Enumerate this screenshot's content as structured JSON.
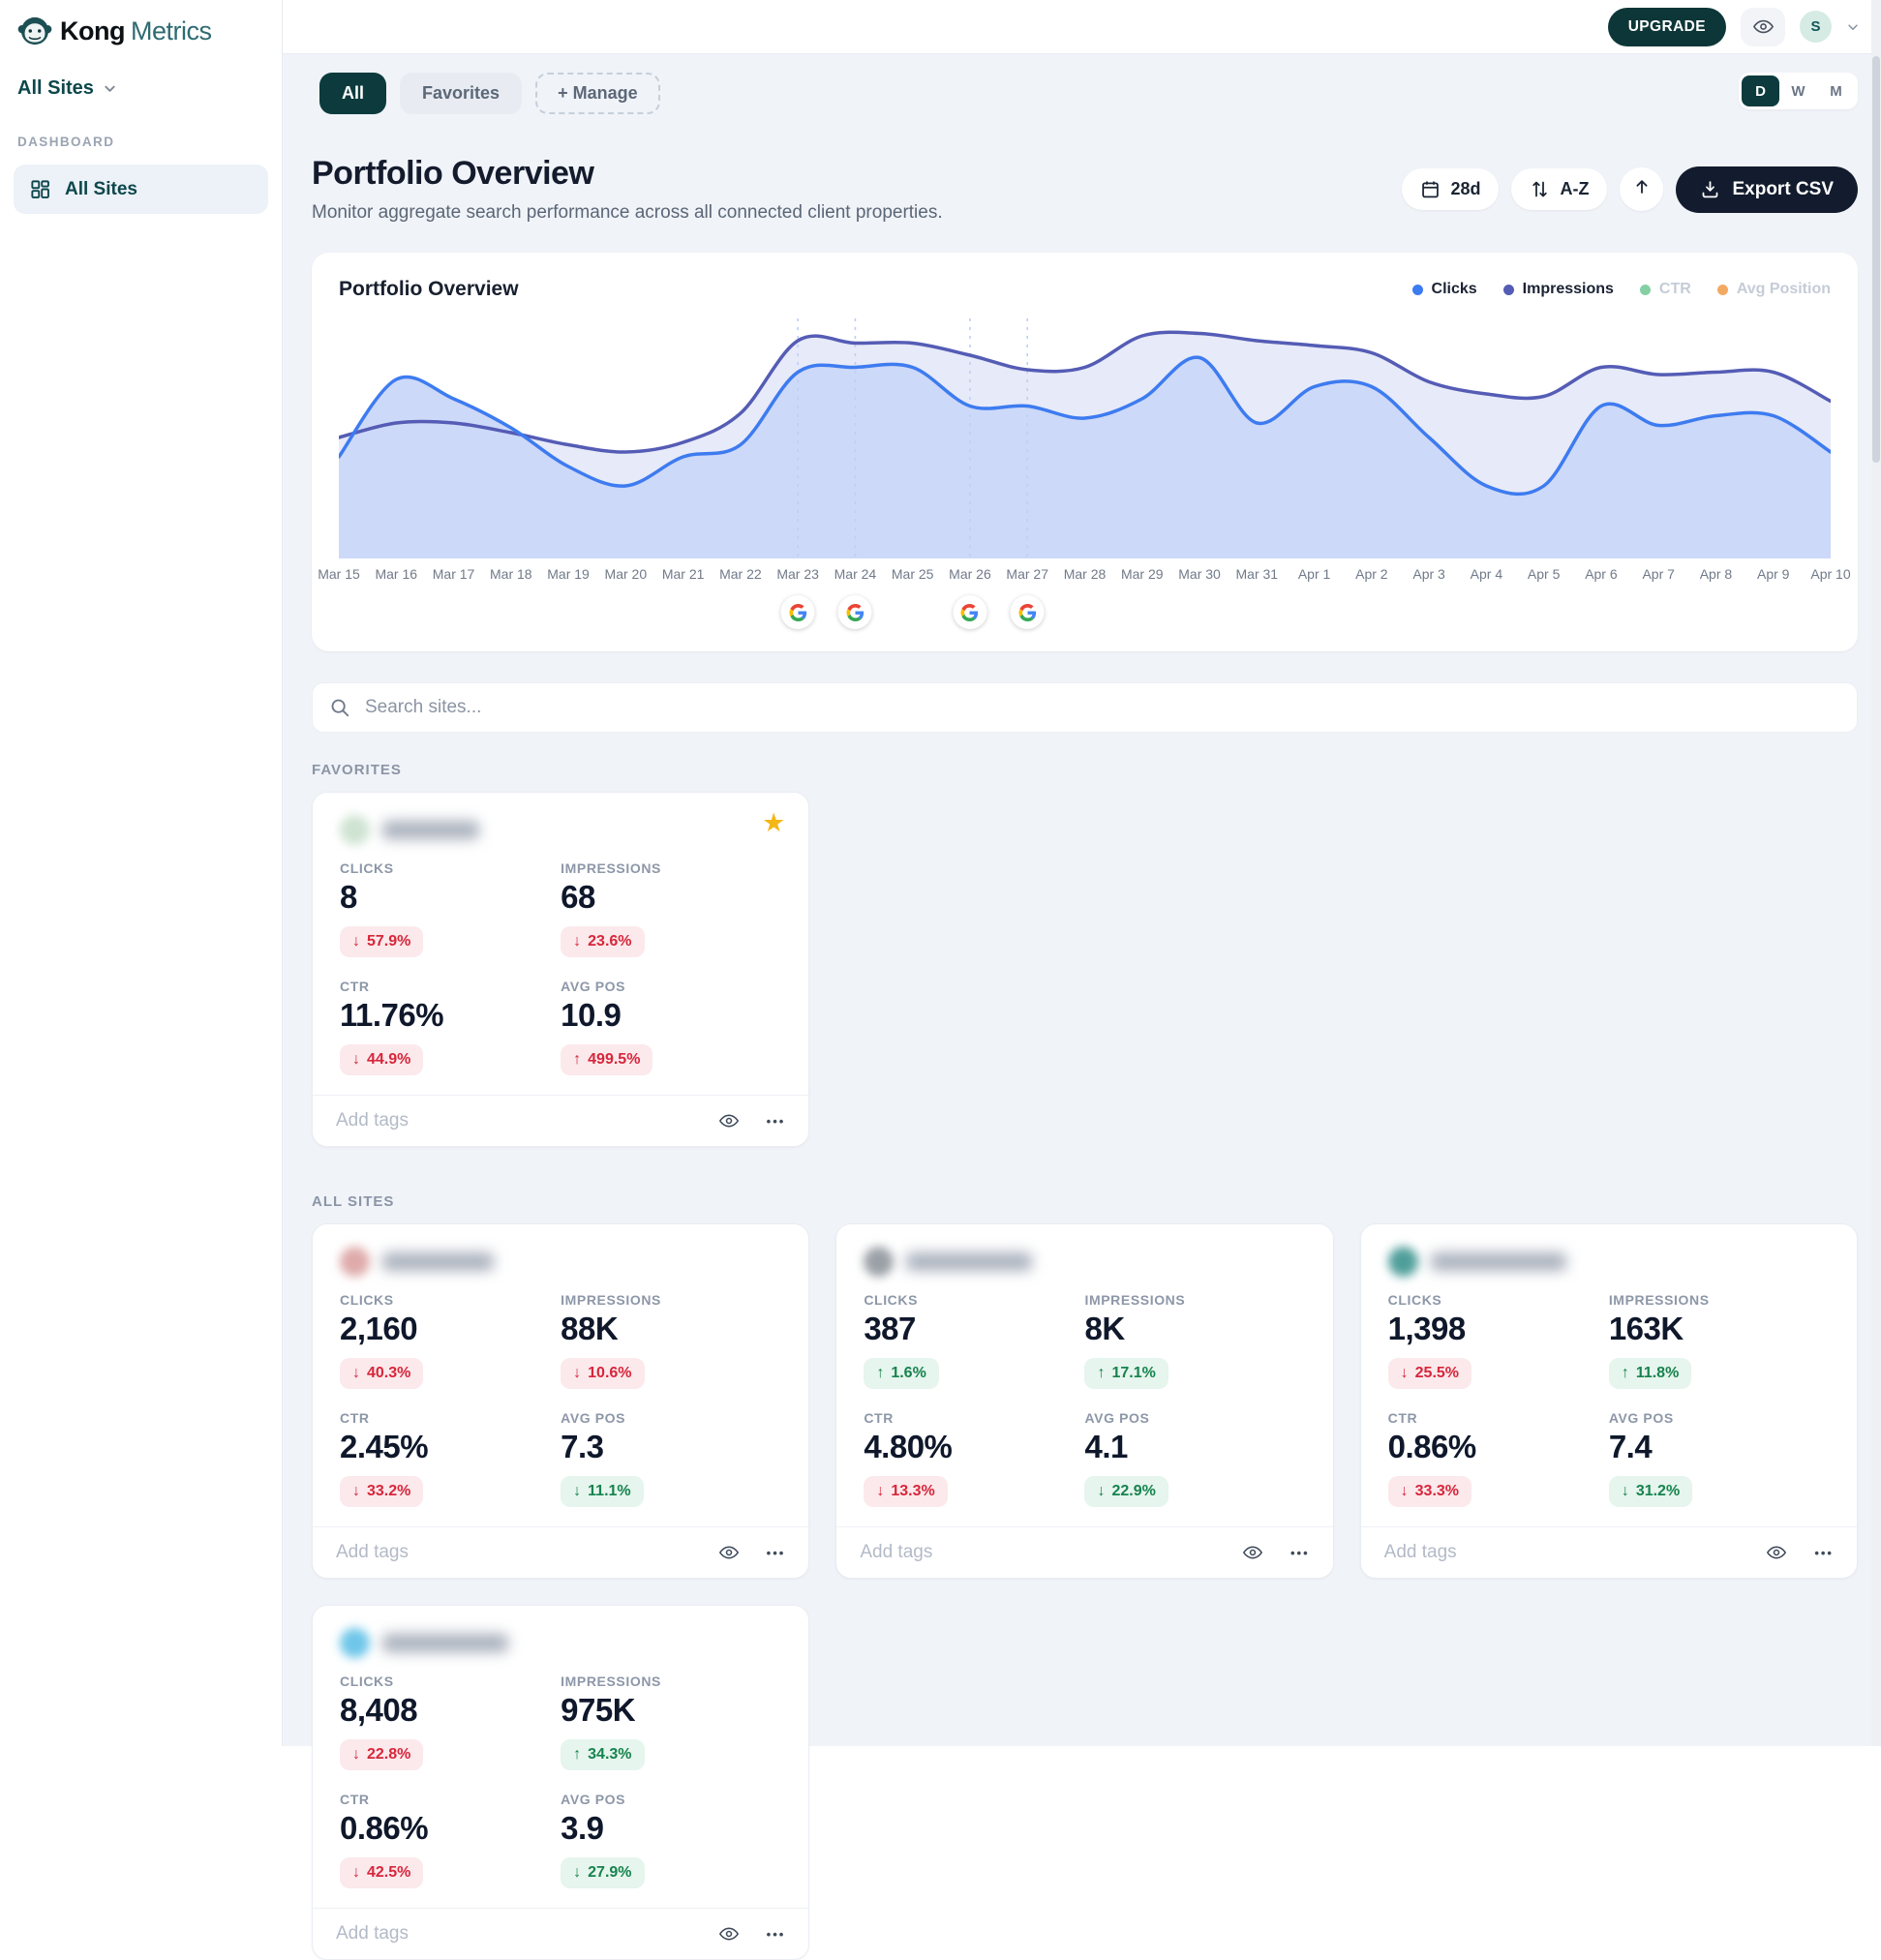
{
  "brand": {
    "kong": "Kong",
    "metrics": "Metrics"
  },
  "sidebar": {
    "site_selector_label": "All Sites",
    "section_label": "DASHBOARD",
    "items": [
      {
        "label": "All Sites",
        "active": true
      }
    ]
  },
  "topbar": {
    "upgrade_label": "UPGRADE",
    "avatar_initial": "S"
  },
  "tabs": [
    {
      "label": "All",
      "active": true
    },
    {
      "label": "Favorites",
      "active": false
    },
    {
      "label": "+ Manage",
      "active": false
    }
  ],
  "granularity": [
    {
      "label": "D",
      "active": true
    },
    {
      "label": "W",
      "active": false
    },
    {
      "label": "M",
      "active": false
    }
  ],
  "header": {
    "title": "Portfolio Overview",
    "subtitle": "Monitor aggregate search performance across all connected client properties."
  },
  "toolbar": {
    "date_range_label": "28d",
    "sort_label": "A-Z",
    "export_label": "Export CSV"
  },
  "chart_card": {
    "title": "Portfolio Overview"
  },
  "chart_data": {
    "type": "area",
    "title": "Portfolio Overview",
    "x": [
      "Mar 15",
      "Mar 16",
      "Mar 17",
      "Mar 18",
      "Mar 19",
      "Mar 20",
      "Mar 21",
      "Mar 22",
      "Mar 23",
      "Mar 24",
      "Mar 25",
      "Mar 26",
      "Mar 27",
      "Mar 28",
      "Mar 29",
      "Mar 30",
      "Mar 31",
      "Apr 1",
      "Apr 2",
      "Apr 3",
      "Apr 4",
      "Apr 5",
      "Apr 6",
      "Apr 7",
      "Apr 8",
      "Apr 9",
      "Apr 10"
    ],
    "xlabel": "",
    "ylabel": "",
    "y_axis_hidden": true,
    "grid": false,
    "legend_position": "top-right",
    "value_scale": "relative-percent-of-plot-height",
    "series": [
      {
        "name": "Clicks",
        "color": "#3d7bf0",
        "fill": "#cdd9f8",
        "enabled": true,
        "values": [
          42,
          74,
          66,
          54,
          38,
          30,
          42,
          47,
          77,
          79,
          79,
          63,
          63,
          58,
          66,
          83,
          56,
          71,
          71,
          50,
          30,
          30,
          63,
          55,
          59,
          59,
          44
        ]
      },
      {
        "name": "Impressions",
        "color": "#545cb5",
        "fill": "#e7eaf8",
        "enabled": true,
        "values": [
          50,
          56,
          56,
          52,
          47,
          44,
          48,
          60,
          90,
          89,
          89,
          84,
          78,
          79,
          92,
          93,
          90,
          88,
          85,
          73,
          68,
          67,
          79,
          76,
          77,
          77,
          65
        ]
      }
    ],
    "disabled_series": [
      {
        "name": "CTR",
        "color": "#85cfa4"
      },
      {
        "name": "Avg Position",
        "color": "#f4a963"
      }
    ],
    "google_updates": [
      {
        "date": "Mar 23",
        "index": 8
      },
      {
        "date": "Mar 24",
        "index": 9
      },
      {
        "date": "Mar 26",
        "index": 11
      },
      {
        "date": "Mar 27",
        "index": 12
      }
    ]
  },
  "search": {
    "placeholder": "Search sites..."
  },
  "sections": {
    "favorites": "FAVORITES",
    "all_sites": "ALL SITES"
  },
  "card_labels": {
    "add_tags": "Add tags"
  },
  "site_cards": {
    "favorites": [
      {
        "favicon_color": "#cfe3d2",
        "name_blur_width": 100,
        "starred": true,
        "metrics": [
          {
            "label": "CLICKS",
            "value": "8",
            "change": "57.9%",
            "direction": "down",
            "sentiment": "negative"
          },
          {
            "label": "IMPRESSIONS",
            "value": "68",
            "change": "23.6%",
            "direction": "down",
            "sentiment": "negative"
          },
          {
            "label": "CTR",
            "value": "11.76%",
            "change": "44.9%",
            "direction": "down",
            "sentiment": "negative"
          },
          {
            "label": "AVG POS",
            "value": "10.9",
            "change": "499.5%",
            "direction": "up",
            "sentiment": "negative"
          }
        ]
      }
    ],
    "all_sites": [
      {
        "favicon_color": "#dfaaaa",
        "name_blur_width": 115,
        "starred": false,
        "metrics": [
          {
            "label": "CLICKS",
            "value": "2,160",
            "change": "40.3%",
            "direction": "down",
            "sentiment": "negative"
          },
          {
            "label": "IMPRESSIONS",
            "value": "88K",
            "change": "10.6%",
            "direction": "down",
            "sentiment": "negative"
          },
          {
            "label": "CTR",
            "value": "2.45%",
            "change": "33.2%",
            "direction": "down",
            "sentiment": "negative"
          },
          {
            "label": "AVG POS",
            "value": "7.3",
            "change": "11.1%",
            "direction": "down",
            "sentiment": "positive"
          }
        ]
      },
      {
        "favicon_color": "#9aa0a6",
        "name_blur_width": 130,
        "starred": false,
        "metrics": [
          {
            "label": "CLICKS",
            "value": "387",
            "change": "1.6%",
            "direction": "up",
            "sentiment": "positive"
          },
          {
            "label": "IMPRESSIONS",
            "value": "8K",
            "change": "17.1%",
            "direction": "up",
            "sentiment": "positive"
          },
          {
            "label": "CTR",
            "value": "4.80%",
            "change": "13.3%",
            "direction": "down",
            "sentiment": "negative"
          },
          {
            "label": "AVG POS",
            "value": "4.1",
            "change": "22.9%",
            "direction": "down",
            "sentiment": "positive"
          }
        ]
      },
      {
        "favicon_color": "#4f9e9a",
        "name_blur_width": 140,
        "starred": false,
        "metrics": [
          {
            "label": "CLICKS",
            "value": "1,398",
            "change": "25.5%",
            "direction": "down",
            "sentiment": "negative"
          },
          {
            "label": "IMPRESSIONS",
            "value": "163K",
            "change": "11.8%",
            "direction": "up",
            "sentiment": "positive"
          },
          {
            "label": "CTR",
            "value": "0.86%",
            "change": "33.3%",
            "direction": "down",
            "sentiment": "negative"
          },
          {
            "label": "AVG POS",
            "value": "7.4",
            "change": "31.2%",
            "direction": "down",
            "sentiment": "positive"
          }
        ]
      },
      {
        "favicon_color": "#6fc6e9",
        "name_blur_width": 130,
        "starred": false,
        "metrics": [
          {
            "label": "CLICKS",
            "value": "8,408",
            "change": "22.8%",
            "direction": "down",
            "sentiment": "negative"
          },
          {
            "label": "IMPRESSIONS",
            "value": "975K",
            "change": "34.3%",
            "direction": "up",
            "sentiment": "positive"
          },
          {
            "label": "CTR",
            "value": "0.86%",
            "change": "42.5%",
            "direction": "down",
            "sentiment": "negative"
          },
          {
            "label": "AVG POS",
            "value": "3.9",
            "change": "27.9%",
            "direction": "down",
            "sentiment": "positive"
          }
        ]
      }
    ]
  }
}
